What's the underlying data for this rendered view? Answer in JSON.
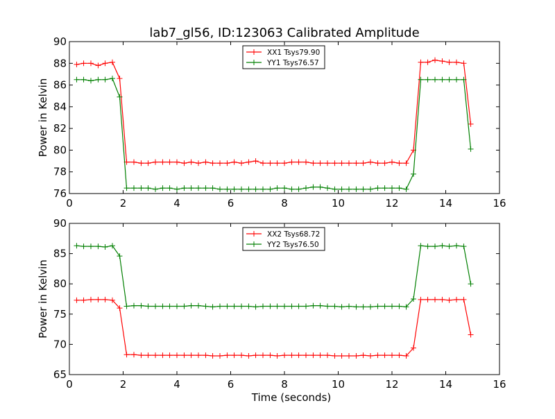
{
  "figure": {
    "title": "lab7_gl56, ID:123063 Calibrated Amplitude"
  },
  "colors": {
    "red": "#ff0000",
    "green": "#007f00",
    "axes": "#000000",
    "background": "#ffffff"
  },
  "chart_data": [
    {
      "type": "line",
      "title": "lab7_gl56, ID:123063 Calibrated Amplitude",
      "xlabel": "",
      "ylabel": "Power in Kelvin",
      "xlim": [
        0,
        16
      ],
      "ylim": [
        76,
        90
      ],
      "xticks": [
        0,
        2,
        4,
        6,
        8,
        10,
        12,
        14,
        16
      ],
      "yticks": [
        76,
        78,
        80,
        82,
        84,
        86,
        88,
        90
      ],
      "grid": false,
      "legend_position": "top-center",
      "x": [
        0.27,
        0.53,
        0.8,
        1.07,
        1.33,
        1.6,
        1.87,
        2.13,
        2.4,
        2.67,
        2.93,
        3.2,
        3.47,
        3.73,
        4.0,
        4.27,
        4.53,
        4.8,
        5.07,
        5.33,
        5.6,
        5.87,
        6.13,
        6.4,
        6.67,
        6.93,
        7.2,
        7.47,
        7.73,
        8.0,
        8.27,
        8.53,
        8.8,
        9.07,
        9.33,
        9.6,
        9.87,
        10.13,
        10.4,
        10.67,
        10.93,
        11.2,
        11.47,
        11.73,
        12.0,
        12.27,
        12.53,
        12.8,
        13.07,
        13.33,
        13.6,
        13.87,
        14.13,
        14.4,
        14.67,
        14.93
      ],
      "series": [
        {
          "name": "XX1 Tsys79.90",
          "color": "#ff0000",
          "values": [
            87.9,
            88.0,
            88.0,
            87.8,
            88.0,
            88.1,
            86.6,
            78.9,
            78.9,
            78.8,
            78.8,
            78.9,
            78.9,
            78.9,
            78.9,
            78.8,
            78.9,
            78.8,
            78.9,
            78.8,
            78.8,
            78.8,
            78.9,
            78.8,
            78.9,
            79.0,
            78.8,
            78.8,
            78.8,
            78.8,
            78.9,
            78.9,
            78.9,
            78.8,
            78.8,
            78.8,
            78.8,
            78.8,
            78.8,
            78.8,
            78.8,
            78.9,
            78.8,
            78.8,
            78.9,
            78.8,
            78.8,
            80.0,
            88.1,
            88.1,
            88.3,
            88.2,
            88.1,
            88.1,
            88.0,
            82.4
          ]
        },
        {
          "name": "YY1 Tsys76.57",
          "color": "#007f00",
          "values": [
            86.5,
            86.5,
            86.4,
            86.5,
            86.5,
            86.6,
            84.9,
            76.5,
            76.5,
            76.5,
            76.5,
            76.4,
            76.5,
            76.5,
            76.4,
            76.5,
            76.5,
            76.5,
            76.5,
            76.5,
            76.4,
            76.4,
            76.4,
            76.4,
            76.4,
            76.4,
            76.4,
            76.4,
            76.5,
            76.5,
            76.4,
            76.4,
            76.5,
            76.6,
            76.6,
            76.5,
            76.4,
            76.4,
            76.4,
            76.4,
            76.4,
            76.4,
            76.5,
            76.5,
            76.5,
            76.5,
            76.4,
            77.8,
            86.5,
            86.5,
            86.5,
            86.5,
            86.5,
            86.5,
            86.5,
            80.1
          ]
        }
      ]
    },
    {
      "type": "line",
      "title": "",
      "xlabel": "Time (seconds)",
      "ylabel": "Power in Kelvin",
      "xlim": [
        0,
        16
      ],
      "ylim": [
        65,
        90
      ],
      "xticks": [
        0,
        2,
        4,
        6,
        8,
        10,
        12,
        14,
        16
      ],
      "yticks": [
        65,
        70,
        75,
        80,
        85,
        90
      ],
      "grid": false,
      "legend_position": "top-center",
      "x": [
        0.27,
        0.53,
        0.8,
        1.07,
        1.33,
        1.6,
        1.87,
        2.13,
        2.4,
        2.67,
        2.93,
        3.2,
        3.47,
        3.73,
        4.0,
        4.27,
        4.53,
        4.8,
        5.07,
        5.33,
        5.6,
        5.87,
        6.13,
        6.4,
        6.67,
        6.93,
        7.2,
        7.47,
        7.73,
        8.0,
        8.27,
        8.53,
        8.8,
        9.07,
        9.33,
        9.6,
        9.87,
        10.13,
        10.4,
        10.67,
        10.93,
        11.2,
        11.47,
        11.73,
        12.0,
        12.27,
        12.53,
        12.8,
        13.07,
        13.33,
        13.6,
        13.87,
        14.13,
        14.4,
        14.67,
        14.93
      ],
      "series": [
        {
          "name": "XX2 Tsys68.72",
          "color": "#ff0000",
          "values": [
            77.3,
            77.3,
            77.4,
            77.4,
            77.4,
            77.3,
            76.0,
            68.3,
            68.3,
            68.2,
            68.2,
            68.2,
            68.2,
            68.2,
            68.2,
            68.2,
            68.2,
            68.2,
            68.2,
            68.1,
            68.1,
            68.2,
            68.2,
            68.2,
            68.1,
            68.2,
            68.2,
            68.2,
            68.1,
            68.2,
            68.2,
            68.2,
            68.2,
            68.2,
            68.2,
            68.2,
            68.1,
            68.1,
            68.1,
            68.1,
            68.2,
            68.1,
            68.2,
            68.2,
            68.2,
            68.2,
            68.1,
            69.4,
            77.4,
            77.4,
            77.4,
            77.4,
            77.3,
            77.4,
            77.4,
            71.6
          ]
        },
        {
          "name": "YY2 Tsys76.50",
          "color": "#007f00",
          "values": [
            86.3,
            86.2,
            86.2,
            86.2,
            86.1,
            86.3,
            84.6,
            76.3,
            76.4,
            76.4,
            76.3,
            76.3,
            76.3,
            76.3,
            76.3,
            76.3,
            76.4,
            76.4,
            76.3,
            76.2,
            76.3,
            76.3,
            76.3,
            76.3,
            76.3,
            76.2,
            76.3,
            76.3,
            76.3,
            76.3,
            76.3,
            76.3,
            76.3,
            76.4,
            76.4,
            76.3,
            76.3,
            76.2,
            76.3,
            76.2,
            76.2,
            76.2,
            76.3,
            76.3,
            76.3,
            76.3,
            76.2,
            77.5,
            86.3,
            86.2,
            86.2,
            86.3,
            86.2,
            86.3,
            86.2,
            80.0
          ]
        }
      ]
    }
  ]
}
